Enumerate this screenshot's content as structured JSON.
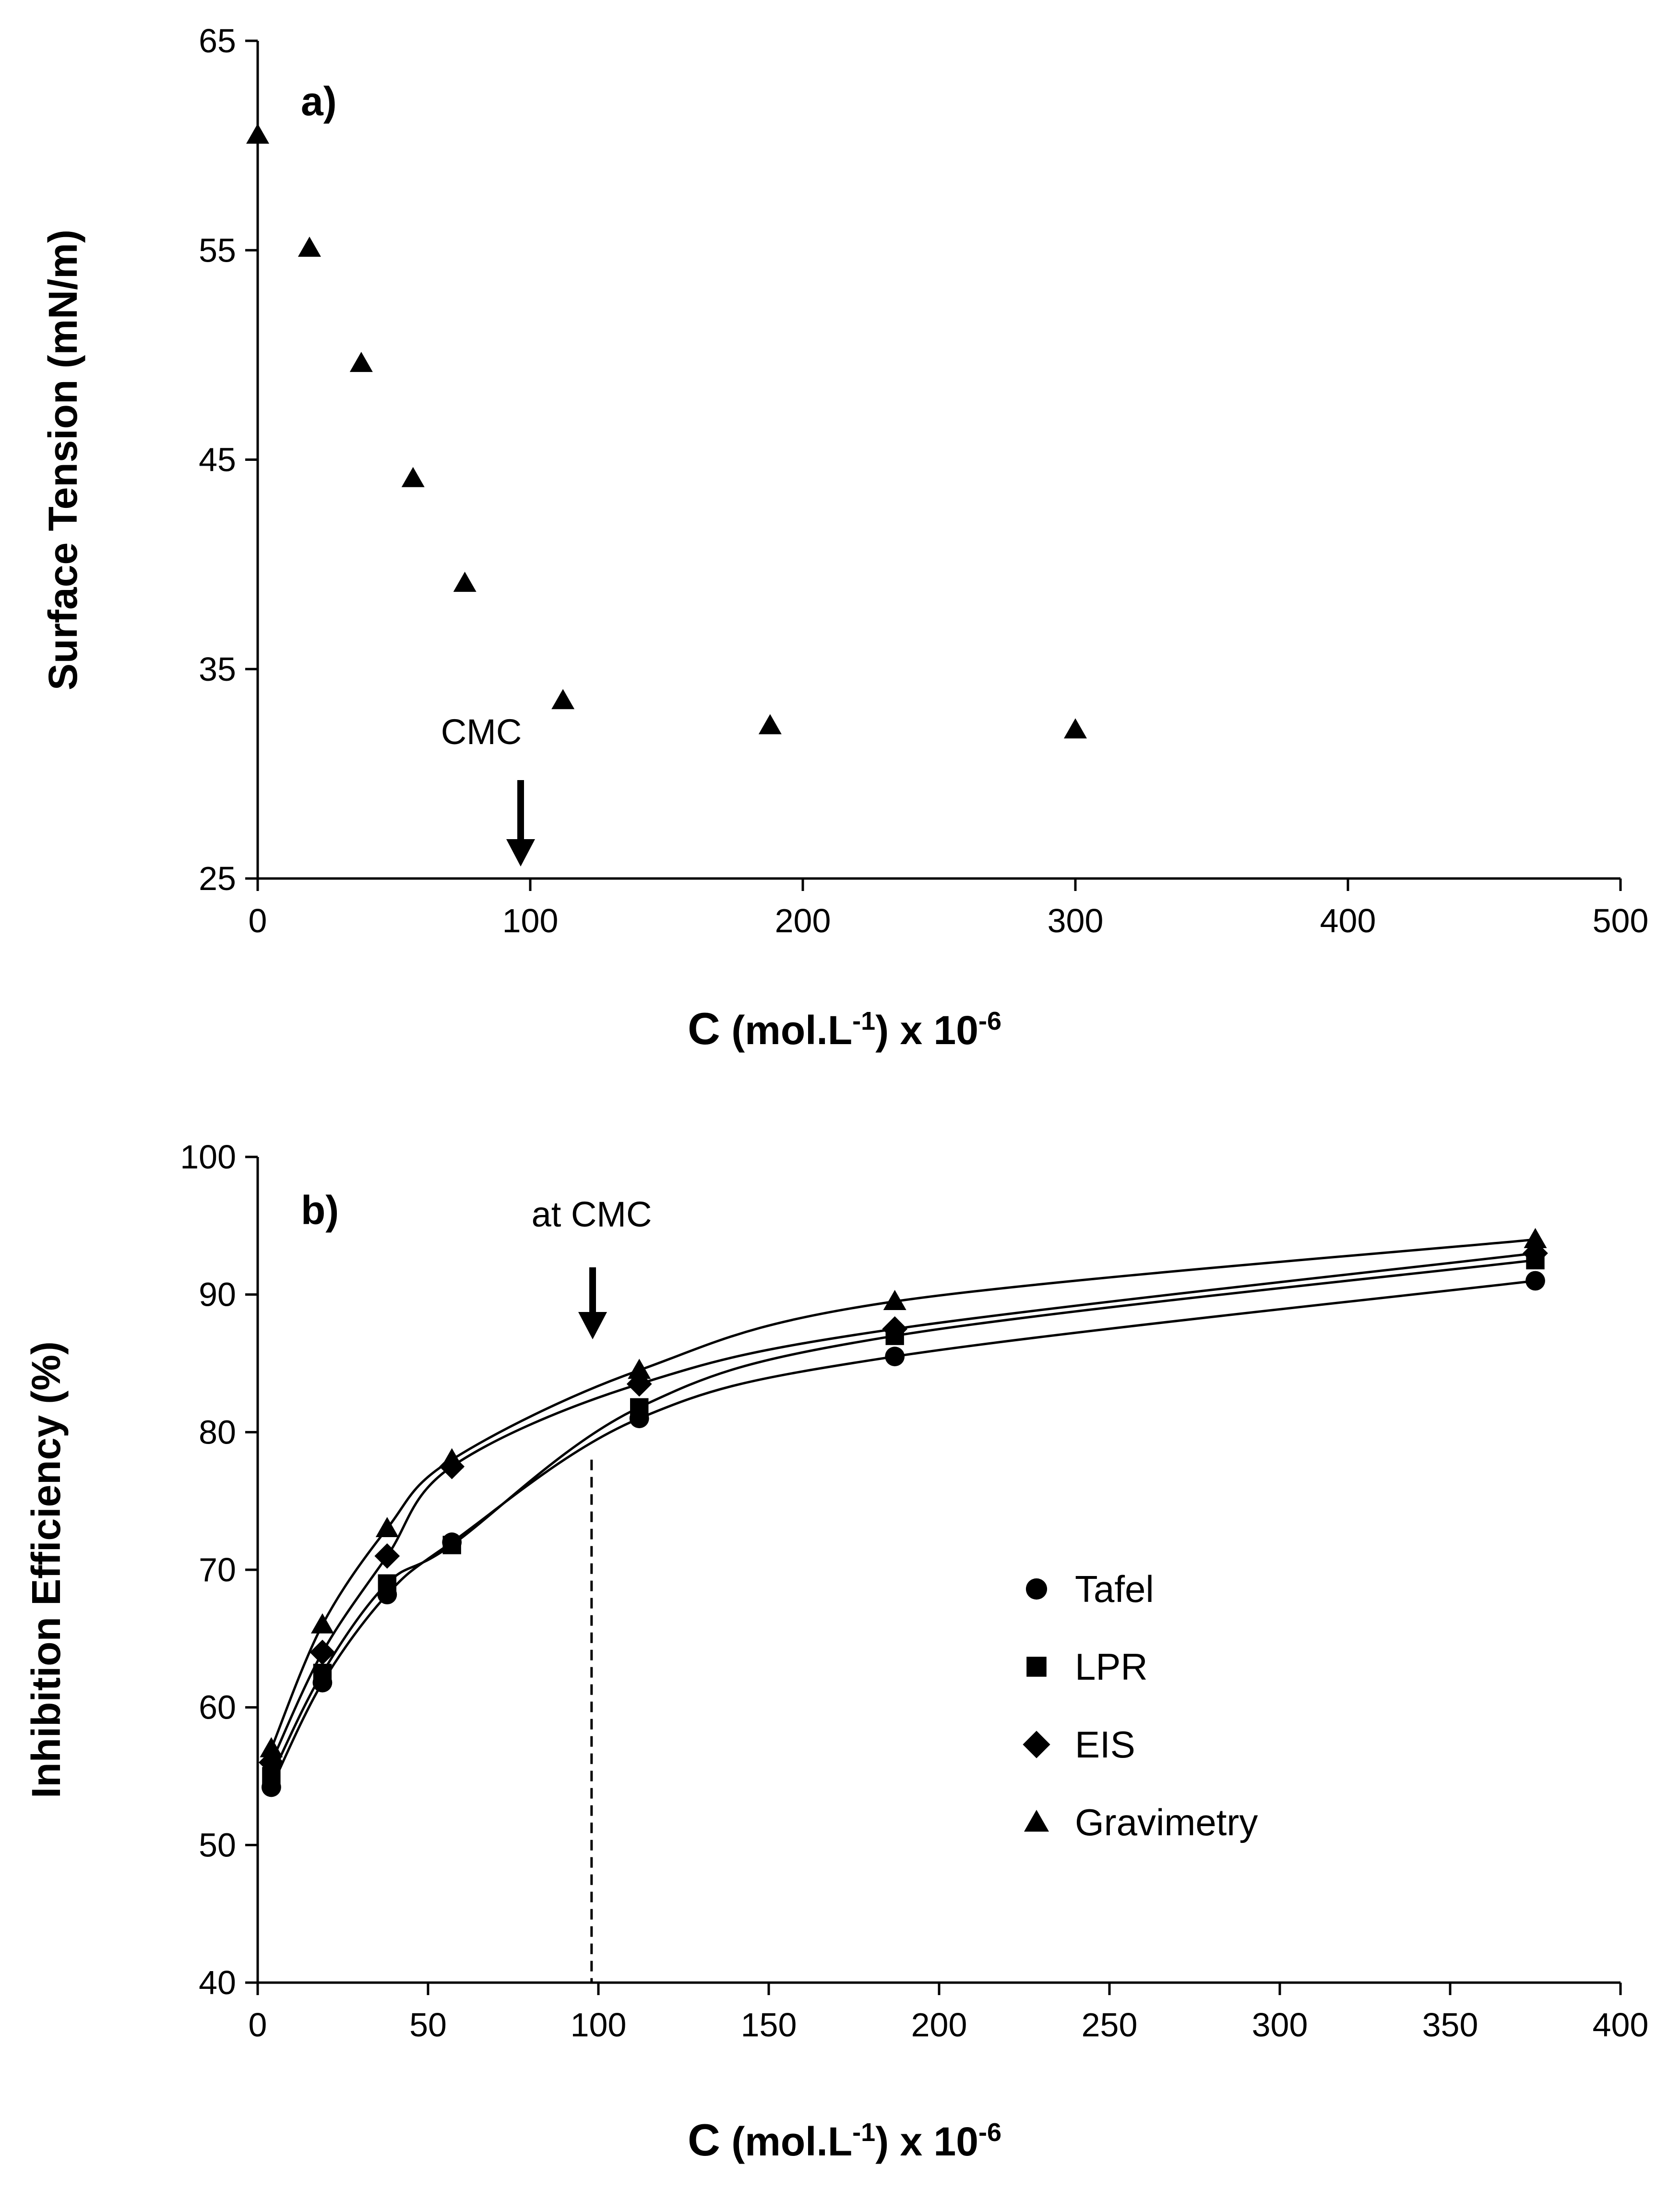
{
  "chart_data": [
    {
      "panel": "a)",
      "type": "scatter",
      "xlabel": "C (mol.L-1) x 10-6",
      "ylabel": "Surface Tension (mN/m)",
      "xlim": [
        0,
        500
      ],
      "ylim": [
        25,
        65
      ],
      "xticks": [
        "0",
        "100",
        "200",
        "300",
        "400",
        "500"
      ],
      "yticks": [
        "25",
        "35",
        "45",
        "55",
        "65"
      ],
      "grid": false,
      "series": [
        {
          "name": "Surface tension",
          "marker": "triangle",
          "x": [
            0,
            19,
            38,
            57,
            76,
            112,
            188,
            300
          ],
          "y": [
            60.5,
            55.1,
            49.6,
            44.1,
            39.1,
            33.5,
            32.3,
            32.1
          ]
        }
      ],
      "annotations": [
        {
          "text": "CMC",
          "x": 96,
          "arrow": "down"
        }
      ]
    },
    {
      "panel": "b)",
      "type": "line",
      "xlabel": "C (mol.L-1) x 10-6",
      "ylabel": "Inhibition Efficiency (%)",
      "xlim": [
        0,
        400
      ],
      "ylim": [
        40,
        100
      ],
      "xticks": [
        "0",
        "50",
        "100",
        "150",
        "200",
        "250",
        "300",
        "350",
        "400"
      ],
      "yticks": [
        "40",
        "50",
        "60",
        "70",
        "80",
        "90",
        "100"
      ],
      "grid": false,
      "legend_position": "center-right",
      "x": [
        4,
        19,
        38,
        57,
        112,
        187,
        375
      ],
      "series": [
        {
          "name": "Tafel",
          "marker": "circle",
          "values": [
            54.2,
            61.8,
            68.2,
            72.0,
            81.0,
            85.5,
            91.0
          ]
        },
        {
          "name": "LPR",
          "marker": "square",
          "values": [
            55.0,
            62.5,
            69.0,
            71.8,
            81.8,
            87.0,
            92.5
          ]
        },
        {
          "name": "EIS",
          "marker": "diamond",
          "values": [
            56.0,
            64.0,
            71.0,
            77.5,
            83.5,
            87.5,
            93.0
          ]
        },
        {
          "name": "Gravimetry",
          "marker": "triangle",
          "values": [
            57.0,
            66.0,
            73.0,
            78.0,
            84.5,
            89.5,
            94.0
          ]
        }
      ],
      "annotations": [
        {
          "text": "at CMC",
          "x": 98,
          "arrow": "down",
          "dashed_line": true
        }
      ]
    }
  ],
  "labels": {
    "panel_a_label": "a)",
    "panel_b_label": "b)",
    "cmc_a": "CMC",
    "cmc_b": "at CMC",
    "ylabel_a": "Surface Tension (mN/m)",
    "ylabel_b": "Inhibition Efficiency (%)",
    "xlabel_main": "C",
    "xlabel_unit_start": " (mol.L",
    "xlabel_unit_sup": "-1",
    "xlabel_unit_end": ")  x 10",
    "xlabel_exp": "-6"
  }
}
